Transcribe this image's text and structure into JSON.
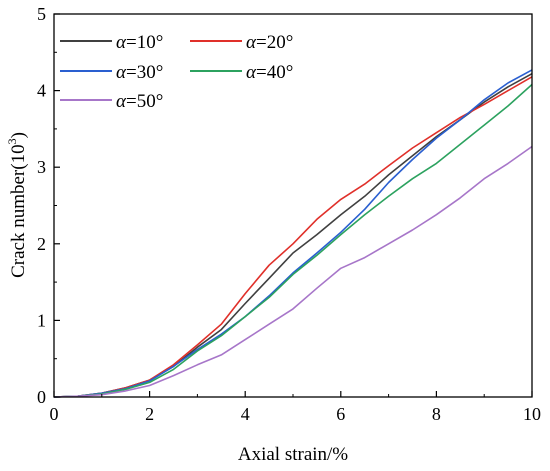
{
  "chart_data": {
    "type": "line",
    "title": "",
    "xlabel": "Axial strain/%",
    "ylabel_main": "Crack number(10",
    "ylabel_sup": "3",
    "ylabel_tail": ")",
    "xlim": [
      0,
      10
    ],
    "ylim": [
      0,
      5
    ],
    "xticks": [
      "0",
      "2",
      "4",
      "6",
      "8",
      "10"
    ],
    "yticks": [
      "0",
      "1",
      "2",
      "3",
      "4",
      "5"
    ],
    "grid": false,
    "legend_position": "top-left",
    "legend_symbol": "α",
    "series": [
      {
        "name": "=10°",
        "color": "#404040",
        "x": [
          0,
          0.5,
          1,
          1.5,
          2,
          2.5,
          3,
          3.5,
          4,
          4.5,
          5,
          5.5,
          6,
          6.5,
          7,
          7.5,
          8,
          8.5,
          9,
          9.5,
          10
        ],
        "y": [
          0,
          0.01,
          0.05,
          0.12,
          0.22,
          0.4,
          0.65,
          0.88,
          1.22,
          1.55,
          1.88,
          2.12,
          2.38,
          2.62,
          2.9,
          3.15,
          3.4,
          3.62,
          3.85,
          4.05,
          4.22
        ]
      },
      {
        "name": "=20°",
        "color": "#e0302a",
        "x": [
          0,
          0.5,
          1,
          1.5,
          2,
          2.5,
          3,
          3.5,
          4,
          4.5,
          5,
          5.5,
          6,
          6.5,
          7,
          7.5,
          8,
          8.5,
          9,
          9.5,
          10
        ],
        "y": [
          0,
          0.01,
          0.05,
          0.12,
          0.22,
          0.42,
          0.68,
          0.95,
          1.35,
          1.72,
          2.0,
          2.32,
          2.58,
          2.78,
          3.02,
          3.25,
          3.45,
          3.65,
          3.82,
          4.0,
          4.18
        ]
      },
      {
        "name": "=30°",
        "color": "#2a5fd0",
        "x": [
          0,
          0.5,
          1,
          1.5,
          2,
          2.5,
          3,
          3.5,
          4,
          4.5,
          5,
          5.5,
          6,
          6.5,
          7,
          7.5,
          8,
          8.5,
          9,
          9.5,
          10
        ],
        "y": [
          0,
          0.01,
          0.05,
          0.11,
          0.21,
          0.4,
          0.62,
          0.82,
          1.05,
          1.32,
          1.62,
          1.88,
          2.15,
          2.45,
          2.8,
          3.1,
          3.38,
          3.62,
          3.88,
          4.1,
          4.27
        ]
      },
      {
        "name": "=40°",
        "color": "#2ca25f",
        "x": [
          0,
          0.5,
          1,
          1.5,
          2,
          2.5,
          3,
          3.5,
          4,
          4.5,
          5,
          5.5,
          6,
          6.5,
          7,
          7.5,
          8,
          8.5,
          9,
          9.5,
          10
        ],
        "y": [
          0,
          0.01,
          0.04,
          0.1,
          0.19,
          0.36,
          0.6,
          0.8,
          1.05,
          1.3,
          1.6,
          1.85,
          2.12,
          2.38,
          2.62,
          2.85,
          3.05,
          3.3,
          3.55,
          3.8,
          4.08
        ]
      },
      {
        "name": "=50°",
        "color": "#a776c9",
        "x": [
          0,
          0.5,
          1,
          1.5,
          2,
          2.5,
          3,
          3.5,
          4,
          4.5,
          5,
          5.5,
          6,
          6.5,
          7,
          7.5,
          8,
          8.5,
          9,
          9.5,
          10
        ],
        "y": [
          0,
          0.01,
          0.03,
          0.08,
          0.15,
          0.28,
          0.42,
          0.55,
          0.75,
          0.95,
          1.15,
          1.42,
          1.68,
          1.82,
          2.0,
          2.18,
          2.38,
          2.6,
          2.85,
          3.05,
          3.27
        ]
      }
    ]
  }
}
